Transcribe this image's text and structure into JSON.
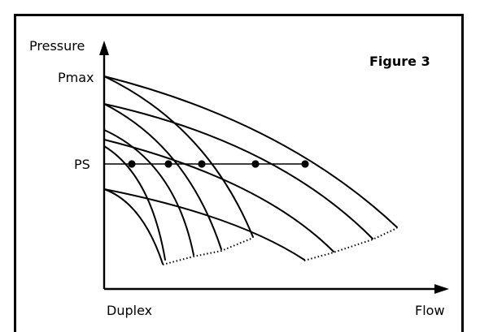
{
  "figure": {
    "title": "Figure 3",
    "y_axis_label": "Pressure",
    "x_axis_label": "Flow",
    "y_tick_top": "Pmax",
    "y_tick_setpoint": "PS",
    "x_corner_label": "Duplex"
  },
  "colors": {
    "ink": "#000000",
    "background": "#ffffff"
  }
}
